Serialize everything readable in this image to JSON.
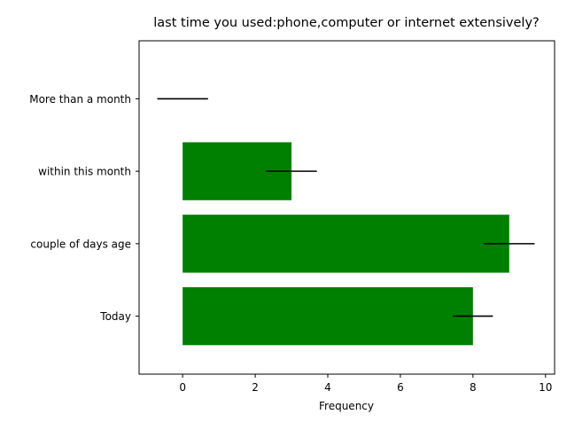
{
  "chart_data": {
    "type": "bar",
    "orientation": "horizontal",
    "title": "last time you used:phone,computer or internet extensively?",
    "xlabel": "Frequency",
    "ylabel": "",
    "categories": [
      "Today",
      "couple of days age",
      "within this month",
      "More than a month"
    ],
    "values": [
      8,
      9,
      3,
      0
    ],
    "errors": [
      0.55,
      0.7,
      0.7,
      0.7
    ],
    "xlim": [
      -1.2,
      10.25
    ],
    "xticks": [
      0,
      2,
      4,
      6,
      8,
      10
    ],
    "bar_color": "#008000",
    "error_color": "#000000",
    "grid": false,
    "legend": "none"
  }
}
